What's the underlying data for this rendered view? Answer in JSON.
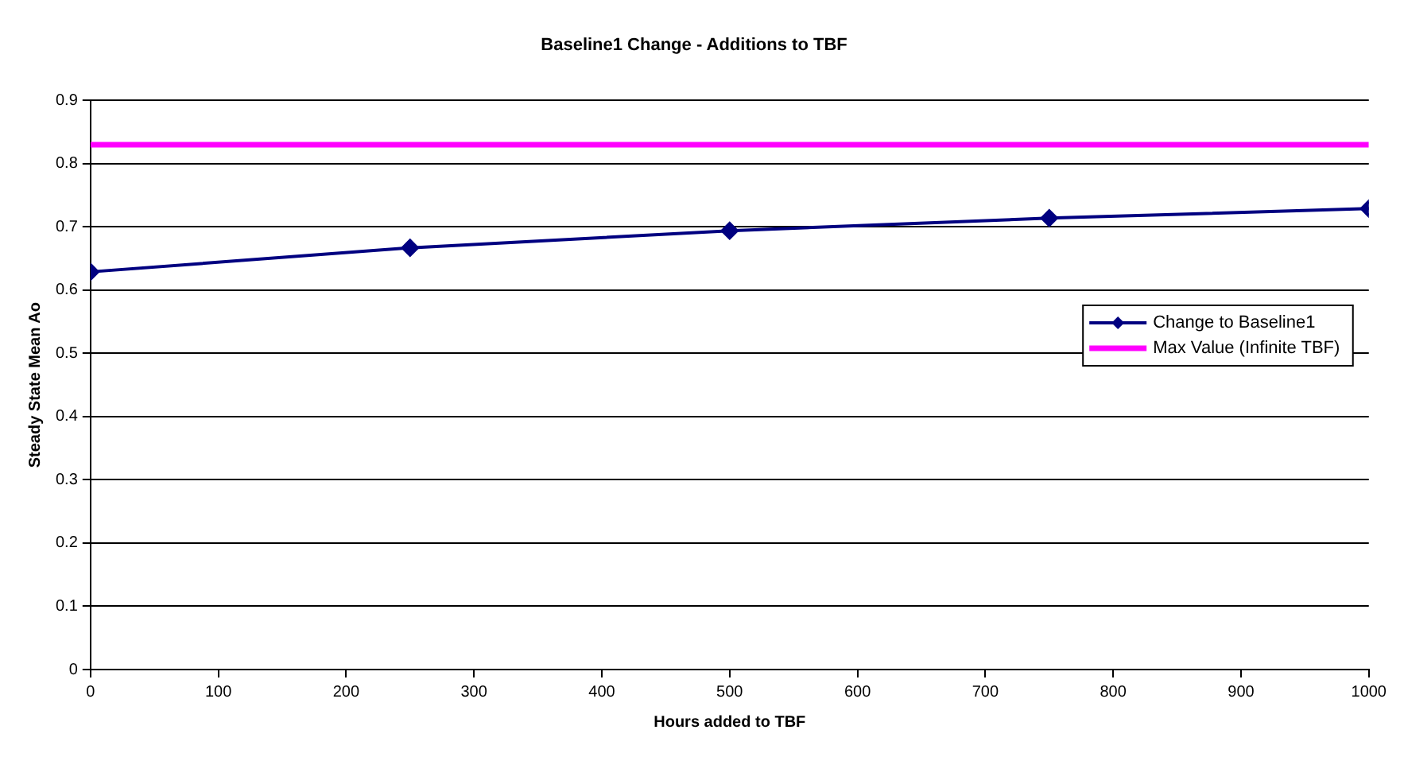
{
  "chart_data": {
    "type": "line",
    "title": "Baseline1 Change - Additions to TBF",
    "xlabel": "Hours added to TBF",
    "ylabel": "Steady State Mean Ao",
    "x": [
      0,
      250,
      500,
      750,
      1000
    ],
    "series": [
      {
        "name": "Change to Baseline1",
        "color": "#000080",
        "values": [
          0.629,
          0.667,
          0.694,
          0.714,
          0.729
        ],
        "marker": "diamond"
      },
      {
        "name": "Max Value (Infinite TBF)",
        "color": "#ff00ff",
        "x": [
          0,
          1000
        ],
        "values": [
          0.83,
          0.83
        ],
        "marker": "none"
      }
    ],
    "xlim": [
      0,
      1000
    ],
    "xticks": [
      0,
      100,
      200,
      300,
      400,
      500,
      600,
      700,
      800,
      900,
      1000
    ],
    "ylim": [
      0,
      0.9
    ],
    "yticks": [
      0,
      0.1,
      0.2,
      0.3,
      0.4,
      0.5,
      0.6,
      0.7,
      0.8,
      0.9
    ],
    "grid": "y",
    "legend": "right",
    "line_style": "solid"
  }
}
